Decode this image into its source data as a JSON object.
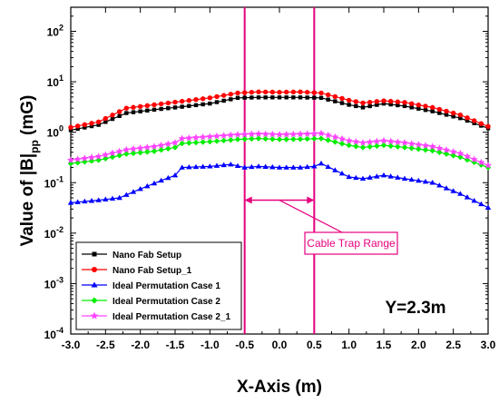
{
  "chart_data": {
    "type": "line",
    "xlabel": "X-Axis (m)",
    "ylabel_parts": [
      "Value of |B|",
      "pp",
      " (mG)"
    ],
    "xlim": [
      -3.0,
      3.0
    ],
    "ylim": [
      0.0001,
      300
    ],
    "yscale": "log",
    "x_ticks": [
      "-3.0",
      "-2.5",
      "-2.0",
      "-1.5",
      "-1.0",
      "-0.5",
      "0.0",
      "0.5",
      "1.0",
      "1.5",
      "2.0",
      "2.5",
      "3.0"
    ],
    "y_tick_exponents": [
      "-4",
      "-3",
      "-2",
      "-1",
      "0",
      "1",
      "2"
    ],
    "y_tick_base": "10",
    "legend_position": "lower-left",
    "annotations": {
      "cable_trap_label": "Cable Trap Range",
      "cable_trap_x": [
        -0.5,
        0.5
      ],
      "y_position_label": "Y=2.3m"
    },
    "series": [
      {
        "name": "Nano Fab Setup",
        "color": "#000000",
        "marker": "square",
        "points": [
          [
            -3.0,
            1.1
          ],
          [
            -2.6,
            1.4
          ],
          [
            -2.2,
            2.4
          ],
          [
            -1.8,
            2.8
          ],
          [
            -1.4,
            3.2
          ],
          [
            -1.0,
            3.7
          ],
          [
            -0.6,
            4.8
          ],
          [
            -0.3,
            4.9
          ],
          [
            0.0,
            4.9
          ],
          [
            0.3,
            4.9
          ],
          [
            0.6,
            4.8
          ],
          [
            1.0,
            3.5
          ],
          [
            1.2,
            3.1
          ],
          [
            1.5,
            3.7
          ],
          [
            1.8,
            3.3
          ],
          [
            2.2,
            2.6
          ],
          [
            2.6,
            1.9
          ],
          [
            3.0,
            1.2
          ]
        ]
      },
      {
        "name": "Nano Fab Setup_1",
        "color": "#ff0000",
        "marker": "circle",
        "points": [
          [
            -3.0,
            1.25
          ],
          [
            -2.6,
            1.6
          ],
          [
            -2.2,
            3.0
          ],
          [
            -1.8,
            3.5
          ],
          [
            -1.4,
            4.1
          ],
          [
            -1.0,
            4.8
          ],
          [
            -0.6,
            6.0
          ],
          [
            -0.3,
            6.3
          ],
          [
            0.0,
            6.2
          ],
          [
            0.3,
            6.3
          ],
          [
            0.6,
            6.0
          ],
          [
            1.0,
            4.3
          ],
          [
            1.2,
            3.8
          ],
          [
            1.5,
            4.2
          ],
          [
            1.8,
            3.9
          ],
          [
            2.2,
            3.1
          ],
          [
            2.6,
            2.2
          ],
          [
            3.0,
            1.3
          ]
        ]
      },
      {
        "name": "Ideal Permutation Case 1",
        "color": "#0000ff",
        "marker": "triangle",
        "points": [
          [
            -3.0,
            0.04
          ],
          [
            -2.6,
            0.045
          ],
          [
            -2.3,
            0.05
          ],
          [
            -2.0,
            0.075
          ],
          [
            -1.7,
            0.11
          ],
          [
            -1.5,
            0.14
          ],
          [
            -1.4,
            0.2
          ],
          [
            -1.0,
            0.21
          ],
          [
            -0.7,
            0.23
          ],
          [
            -0.5,
            0.2
          ],
          [
            -0.3,
            0.21
          ],
          [
            0.0,
            0.2
          ],
          [
            0.3,
            0.2
          ],
          [
            0.5,
            0.21
          ],
          [
            0.6,
            0.24
          ],
          [
            1.0,
            0.13
          ],
          [
            1.2,
            0.12
          ],
          [
            1.5,
            0.14
          ],
          [
            1.8,
            0.12
          ],
          [
            2.2,
            0.1
          ],
          [
            2.6,
            0.06
          ],
          [
            3.0,
            0.032
          ]
        ]
      },
      {
        "name": "Ideal Permutation Case 2",
        "color": "#00ee00",
        "marker": "diamond",
        "points": [
          [
            -3.0,
            0.24
          ],
          [
            -2.6,
            0.28
          ],
          [
            -2.2,
            0.37
          ],
          [
            -1.8,
            0.42
          ],
          [
            -1.5,
            0.5
          ],
          [
            -1.4,
            0.6
          ],
          [
            -1.0,
            0.65
          ],
          [
            -0.6,
            0.72
          ],
          [
            -0.3,
            0.75
          ],
          [
            0.0,
            0.72
          ],
          [
            0.3,
            0.73
          ],
          [
            0.6,
            0.75
          ],
          [
            1.0,
            0.55
          ],
          [
            1.2,
            0.5
          ],
          [
            1.5,
            0.55
          ],
          [
            1.8,
            0.5
          ],
          [
            2.2,
            0.43
          ],
          [
            2.6,
            0.32
          ],
          [
            3.0,
            0.2
          ]
        ]
      },
      {
        "name": "Ideal Permutation Case 2_1",
        "color": "#ff44ff",
        "marker": "star",
        "points": [
          [
            -3.0,
            0.28
          ],
          [
            -2.6,
            0.33
          ],
          [
            -2.2,
            0.45
          ],
          [
            -1.8,
            0.52
          ],
          [
            -1.5,
            0.62
          ],
          [
            -1.4,
            0.75
          ],
          [
            -1.0,
            0.82
          ],
          [
            -0.6,
            0.9
          ],
          [
            -0.3,
            0.93
          ],
          [
            0.0,
            0.9
          ],
          [
            0.3,
            0.92
          ],
          [
            0.6,
            0.95
          ],
          [
            1.0,
            0.68
          ],
          [
            1.2,
            0.62
          ],
          [
            1.5,
            0.68
          ],
          [
            1.8,
            0.62
          ],
          [
            2.2,
            0.52
          ],
          [
            2.6,
            0.38
          ],
          [
            3.0,
            0.22
          ]
        ]
      }
    ]
  }
}
